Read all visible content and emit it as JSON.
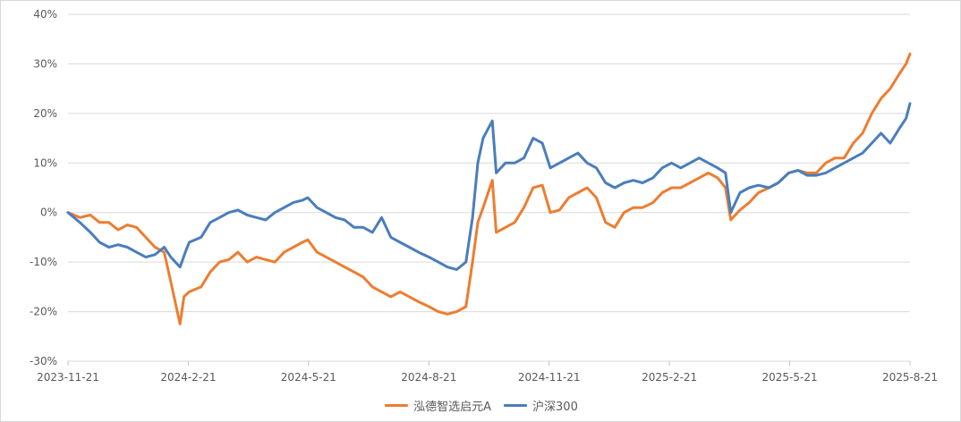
{
  "chart_data": {
    "type": "line",
    "title": "",
    "xlabel": "",
    "ylabel": "",
    "ylim": [
      -30,
      40
    ],
    "y_ticks": [
      "40%",
      "30%",
      "20%",
      "10%",
      "0%",
      "-10%",
      "-20%",
      "-30%"
    ],
    "y_tick_values": [
      40,
      30,
      20,
      10,
      0,
      -10,
      -20,
      -30
    ],
    "x_tick_labels": [
      "2023-11-21",
      "2024-2-21",
      "2024-5-21",
      "2024-8-21",
      "2024-11-21",
      "2025-2-21",
      "2025-5-21",
      "2025-8-21"
    ],
    "x_range": [
      "2023-11-21",
      "2025-08-21"
    ],
    "grid": "horizontal",
    "legend_position": "bottom",
    "series": [
      {
        "name": "泓德智选启元A",
        "color": "#ed7d31",
        "points": [
          [
            "2023-11-21",
            0
          ],
          [
            "2023-11-30",
            -1
          ],
          [
            "2023-12-08",
            -0.5
          ],
          [
            "2023-12-15",
            -2
          ],
          [
            "2023-12-22",
            -2
          ],
          [
            "2023-12-29",
            -3.5
          ],
          [
            "2024-01-05",
            -2.5
          ],
          [
            "2024-01-12",
            -3
          ],
          [
            "2024-01-19",
            -5
          ],
          [
            "2024-01-26",
            -7
          ],
          [
            "2024-02-02",
            -8
          ],
          [
            "2024-02-07",
            -14
          ],
          [
            "2024-02-14",
            -22.5
          ],
          [
            "2024-02-17",
            -17
          ],
          [
            "2024-02-21",
            -16
          ],
          [
            "2024-03-01",
            -15
          ],
          [
            "2024-03-08",
            -12
          ],
          [
            "2024-03-15",
            -10
          ],
          [
            "2024-03-22",
            -9.5
          ],
          [
            "2024-03-29",
            -8
          ],
          [
            "2024-04-05",
            -10
          ],
          [
            "2024-04-12",
            -9
          ],
          [
            "2024-04-19",
            -9.5
          ],
          [
            "2024-04-26",
            -10
          ],
          [
            "2024-05-03",
            -8
          ],
          [
            "2024-05-10",
            -7
          ],
          [
            "2024-05-17",
            -6
          ],
          [
            "2024-05-21",
            -5.5
          ],
          [
            "2024-05-28",
            -8
          ],
          [
            "2024-06-04",
            -9
          ],
          [
            "2024-06-11",
            -10
          ],
          [
            "2024-06-18",
            -11
          ],
          [
            "2024-06-25",
            -12
          ],
          [
            "2024-07-02",
            -13
          ],
          [
            "2024-07-09",
            -15
          ],
          [
            "2024-07-16",
            -16
          ],
          [
            "2024-07-23",
            -17
          ],
          [
            "2024-07-30",
            -16
          ],
          [
            "2024-08-06",
            -17
          ],
          [
            "2024-08-13",
            -18
          ],
          [
            "2024-08-21",
            -19
          ],
          [
            "2024-08-28",
            -20
          ],
          [
            "2024-09-04",
            -20.5
          ],
          [
            "2024-09-11",
            -20
          ],
          [
            "2024-09-18",
            -19
          ],
          [
            "2024-09-23",
            -10
          ],
          [
            "2024-09-27",
            -2
          ],
          [
            "2024-10-01",
            1
          ],
          [
            "2024-10-08",
            6.5
          ],
          [
            "2024-10-11",
            -4
          ],
          [
            "2024-10-18",
            -3
          ],
          [
            "2024-10-25",
            -2
          ],
          [
            "2024-11-01",
            1
          ],
          [
            "2024-11-08",
            5
          ],
          [
            "2024-11-15",
            5.5
          ],
          [
            "2024-11-21",
            0
          ],
          [
            "2024-11-28",
            0.5
          ],
          [
            "2024-12-05",
            3
          ],
          [
            "2024-12-12",
            4
          ],
          [
            "2024-12-19",
            5
          ],
          [
            "2024-12-26",
            3
          ],
          [
            "2025-01-02",
            -2
          ],
          [
            "2025-01-09",
            -3
          ],
          [
            "2025-01-16",
            0
          ],
          [
            "2025-01-23",
            1
          ],
          [
            "2025-01-30",
            1
          ],
          [
            "2025-02-07",
            2
          ],
          [
            "2025-02-14",
            4
          ],
          [
            "2025-02-21",
            5
          ],
          [
            "2025-02-28",
            5
          ],
          [
            "2025-03-07",
            6
          ],
          [
            "2025-03-14",
            7
          ],
          [
            "2025-03-21",
            8
          ],
          [
            "2025-03-28",
            7
          ],
          [
            "2025-04-03",
            5
          ],
          [
            "2025-04-07",
            -1.5
          ],
          [
            "2025-04-14",
            0.5
          ],
          [
            "2025-04-21",
            2
          ],
          [
            "2025-04-28",
            4
          ],
          [
            "2025-05-06",
            5
          ],
          [
            "2025-05-13",
            6
          ],
          [
            "2025-05-21",
            8
          ],
          [
            "2025-05-28",
            8.5
          ],
          [
            "2025-06-04",
            8
          ],
          [
            "2025-06-11",
            8
          ],
          [
            "2025-06-18",
            10
          ],
          [
            "2025-06-25",
            11
          ],
          [
            "2025-07-02",
            11
          ],
          [
            "2025-07-09",
            14
          ],
          [
            "2025-07-16",
            16
          ],
          [
            "2025-07-23",
            20
          ],
          [
            "2025-07-30",
            23
          ],
          [
            "2025-08-06",
            25
          ],
          [
            "2025-08-13",
            28
          ],
          [
            "2025-08-18",
            30
          ],
          [
            "2025-08-21",
            32
          ]
        ]
      },
      {
        "name": "沪深300",
        "color": "#4a7ebb",
        "points": [
          [
            "2023-11-21",
            0
          ],
          [
            "2023-11-30",
            -2
          ],
          [
            "2023-12-08",
            -4
          ],
          [
            "2023-12-15",
            -6
          ],
          [
            "2023-12-22",
            -7
          ],
          [
            "2023-12-29",
            -6.5
          ],
          [
            "2024-01-05",
            -7
          ],
          [
            "2024-01-12",
            -8
          ],
          [
            "2024-01-19",
            -9
          ],
          [
            "2024-01-26",
            -8.5
          ],
          [
            "2024-02-02",
            -7
          ],
          [
            "2024-02-07",
            -9
          ],
          [
            "2024-02-14",
            -11
          ],
          [
            "2024-02-18",
            -8
          ],
          [
            "2024-02-21",
            -6
          ],
          [
            "2024-03-01",
            -5
          ],
          [
            "2024-03-08",
            -2
          ],
          [
            "2024-03-15",
            -1
          ],
          [
            "2024-03-22",
            0
          ],
          [
            "2024-03-29",
            0.5
          ],
          [
            "2024-04-05",
            -0.5
          ],
          [
            "2024-04-12",
            -1
          ],
          [
            "2024-04-19",
            -1.5
          ],
          [
            "2024-04-26",
            0
          ],
          [
            "2024-05-03",
            1
          ],
          [
            "2024-05-10",
            2
          ],
          [
            "2024-05-17",
            2.5
          ],
          [
            "2024-05-21",
            3
          ],
          [
            "2024-05-28",
            1
          ],
          [
            "2024-06-04",
            0
          ],
          [
            "2024-06-11",
            -1
          ],
          [
            "2024-06-18",
            -1.5
          ],
          [
            "2024-06-25",
            -3
          ],
          [
            "2024-07-02",
            -3
          ],
          [
            "2024-07-09",
            -4
          ],
          [
            "2024-07-16",
            -1
          ],
          [
            "2024-07-23",
            -5
          ],
          [
            "2024-07-30",
            -6
          ],
          [
            "2024-08-06",
            -7
          ],
          [
            "2024-08-13",
            -8
          ],
          [
            "2024-08-21",
            -9
          ],
          [
            "2024-08-28",
            -10
          ],
          [
            "2024-09-04",
            -11
          ],
          [
            "2024-09-11",
            -11.5
          ],
          [
            "2024-09-18",
            -10
          ],
          [
            "2024-09-23",
            -1
          ],
          [
            "2024-09-27",
            10
          ],
          [
            "2024-10-01",
            15
          ],
          [
            "2024-10-08",
            18.5
          ],
          [
            "2024-10-11",
            8
          ],
          [
            "2024-10-18",
            10
          ],
          [
            "2024-10-25",
            10
          ],
          [
            "2024-11-01",
            11
          ],
          [
            "2024-11-08",
            15
          ],
          [
            "2024-11-15",
            14
          ],
          [
            "2024-11-21",
            9
          ],
          [
            "2024-11-28",
            10
          ],
          [
            "2024-12-05",
            11
          ],
          [
            "2024-12-12",
            12
          ],
          [
            "2024-12-19",
            10
          ],
          [
            "2024-12-26",
            9
          ],
          [
            "2025-01-02",
            6
          ],
          [
            "2025-01-09",
            5
          ],
          [
            "2025-01-16",
            6
          ],
          [
            "2025-01-23",
            6.5
          ],
          [
            "2025-01-30",
            6
          ],
          [
            "2025-02-07",
            7
          ],
          [
            "2025-02-14",
            9
          ],
          [
            "2025-02-21",
            10
          ],
          [
            "2025-02-28",
            9
          ],
          [
            "2025-03-07",
            10
          ],
          [
            "2025-03-14",
            11
          ],
          [
            "2025-03-21",
            10
          ],
          [
            "2025-03-28",
            9
          ],
          [
            "2025-04-03",
            8
          ],
          [
            "2025-04-07",
            0
          ],
          [
            "2025-04-14",
            4
          ],
          [
            "2025-04-21",
            5
          ],
          [
            "2025-04-28",
            5.5
          ],
          [
            "2025-05-06",
            5
          ],
          [
            "2025-05-13",
            6
          ],
          [
            "2025-05-21",
            8
          ],
          [
            "2025-05-28",
            8.5
          ],
          [
            "2025-06-04",
            7.5
          ],
          [
            "2025-06-11",
            7.5
          ],
          [
            "2025-06-18",
            8
          ],
          [
            "2025-06-25",
            9
          ],
          [
            "2025-07-02",
            10
          ],
          [
            "2025-07-09",
            11
          ],
          [
            "2025-07-16",
            12
          ],
          [
            "2025-07-23",
            14
          ],
          [
            "2025-07-30",
            16
          ],
          [
            "2025-08-06",
            14
          ],
          [
            "2025-08-13",
            17
          ],
          [
            "2025-08-18",
            19
          ],
          [
            "2025-08-21",
            22
          ]
        ]
      }
    ]
  }
}
